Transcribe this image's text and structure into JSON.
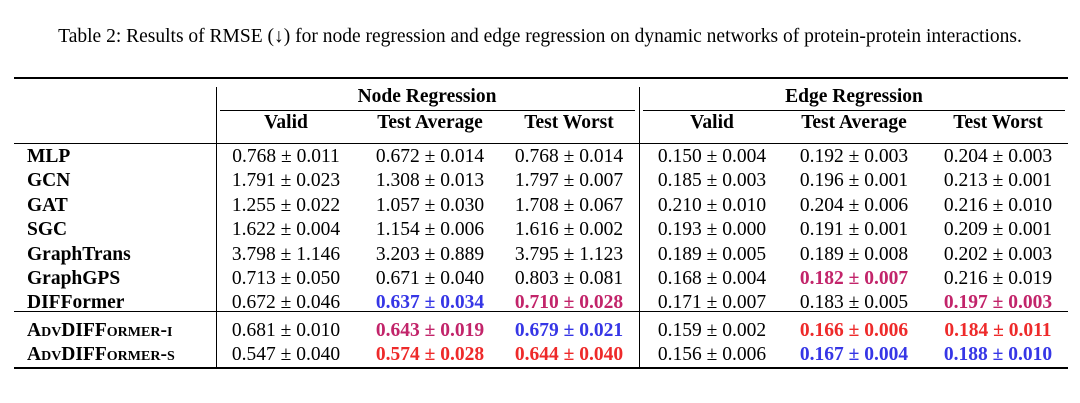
{
  "caption": "Table 2: Results of RMSE (↓) for node regression and edge regression on dynamic networks of protein-protein interactions.",
  "groups": [
    "Node Regression",
    "Edge Regression"
  ],
  "columns": [
    "Valid",
    "Test Average",
    "Test Worst",
    "Valid",
    "Test Average",
    "Test Worst"
  ],
  "colors": {
    "best_red": "#ee2a2a",
    "second_blue": "#3636e6",
    "third_purple": "#c2246a"
  },
  "rows": [
    {
      "model": "MLP",
      "cells": [
        {
          "v": "0.768 ± 0.011"
        },
        {
          "v": "0.672 ± 0.014"
        },
        {
          "v": "0.768 ± 0.014"
        },
        {
          "v": "0.150 ± 0.004"
        },
        {
          "v": "0.192 ± 0.003"
        },
        {
          "v": "0.204 ± 0.003"
        }
      ]
    },
    {
      "model": "GCN",
      "cells": [
        {
          "v": "1.791 ± 0.023"
        },
        {
          "v": "1.308 ± 0.013"
        },
        {
          "v": "1.797 ± 0.007"
        },
        {
          "v": "0.185 ± 0.003"
        },
        {
          "v": "0.196 ± 0.001"
        },
        {
          "v": "0.213 ± 0.001"
        }
      ]
    },
    {
      "model": "GAT",
      "cells": [
        {
          "v": "1.255 ± 0.022"
        },
        {
          "v": "1.057 ± 0.030"
        },
        {
          "v": "1.708 ± 0.067"
        },
        {
          "v": "0.210 ± 0.010"
        },
        {
          "v": "0.204 ± 0.006"
        },
        {
          "v": "0.216 ± 0.010"
        }
      ]
    },
    {
      "model": "SGC",
      "cells": [
        {
          "v": "1.622 ± 0.004"
        },
        {
          "v": "1.154 ± 0.006"
        },
        {
          "v": "1.616 ± 0.002"
        },
        {
          "v": "0.193 ± 0.000"
        },
        {
          "v": "0.191 ± 0.001"
        },
        {
          "v": "0.209 ± 0.001"
        }
      ]
    },
    {
      "model": "GraphTrans",
      "cells": [
        {
          "v": "3.798 ± 1.146"
        },
        {
          "v": "3.203 ± 0.889"
        },
        {
          "v": "3.795 ± 1.123"
        },
        {
          "v": "0.189 ± 0.005"
        },
        {
          "v": "0.189 ± 0.008"
        },
        {
          "v": "0.202 ± 0.003"
        }
      ]
    },
    {
      "model": "GraphGPS",
      "cells": [
        {
          "v": "0.713 ± 0.050"
        },
        {
          "v": "0.671 ± 0.040"
        },
        {
          "v": "0.803 ± 0.081"
        },
        {
          "v": "0.168 ± 0.004"
        },
        {
          "v": "0.182 ± 0.007",
          "hl": "purple"
        },
        {
          "v": "0.216 ± 0.019"
        }
      ]
    },
    {
      "model": "DIFFormer",
      "cells": [
        {
          "v": "0.672 ± 0.046"
        },
        {
          "v": "0.637 ± 0.034",
          "hl": "blue"
        },
        {
          "v": "0.710 ± 0.028",
          "hl": "purple"
        },
        {
          "v": "0.171 ± 0.007"
        },
        {
          "v": "0.183 ± 0.005"
        },
        {
          "v": "0.197 ± 0.003",
          "hl": "purple"
        }
      ]
    },
    {
      "model": "AdvDIFFormer-i",
      "smallcaps": true,
      "cells": [
        {
          "v": "0.681 ± 0.010"
        },
        {
          "v": "0.643 ± 0.019",
          "hl": "purple"
        },
        {
          "v": "0.679 ± 0.021",
          "hl": "blue"
        },
        {
          "v": "0.159 ± 0.002"
        },
        {
          "v": "0.166 ± 0.006",
          "hl": "red"
        },
        {
          "v": "0.184 ± 0.011",
          "hl": "red"
        }
      ]
    },
    {
      "model": "AdvDIFFormer-s",
      "smallcaps": true,
      "cells": [
        {
          "v": "0.547 ± 0.040"
        },
        {
          "v": "0.574 ± 0.028",
          "hl": "red"
        },
        {
          "v": "0.644 ± 0.040",
          "hl": "red"
        },
        {
          "v": "0.156 ± 0.006"
        },
        {
          "v": "0.167 ± 0.004",
          "hl": "blue"
        },
        {
          "v": "0.188 ± 0.010",
          "hl": "blue"
        }
      ]
    }
  ]
}
